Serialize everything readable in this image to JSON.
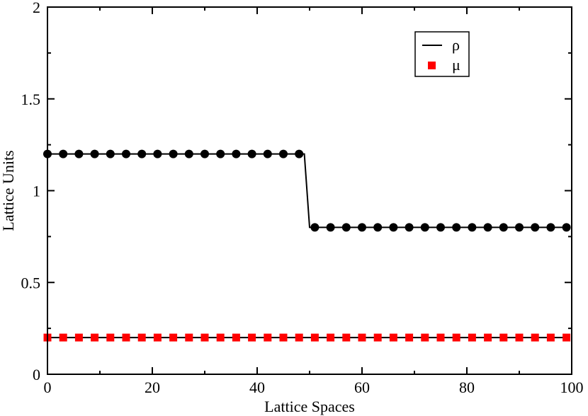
{
  "chart_data": {
    "type": "line",
    "title": "",
    "xlabel": "Lattice Spaces",
    "ylabel": "Lattice Units",
    "xlim": [
      0,
      100
    ],
    "ylim": [
      0,
      2
    ],
    "xticks": [
      0,
      20,
      40,
      60,
      80,
      100
    ],
    "yticks": [
      0,
      0.5,
      1,
      1.5,
      2
    ],
    "xtick_labels": [
      "0",
      "20",
      "40",
      "60",
      "80",
      "100"
    ],
    "ytick_labels": [
      "0",
      "0.5",
      "1",
      "1.5",
      "2"
    ],
    "grid": false,
    "legend_position": "top-right",
    "series": [
      {
        "name": "ρ",
        "line_color": "#000000",
        "marker": "circle",
        "marker_color": "#000000",
        "line_x": [
          0,
          1,
          2,
          3,
          4,
          5,
          6,
          7,
          8,
          9,
          10,
          11,
          12,
          13,
          14,
          15,
          16,
          17,
          18,
          19,
          20,
          21,
          22,
          23,
          24,
          25,
          26,
          27,
          28,
          29,
          30,
          31,
          32,
          33,
          34,
          35,
          36,
          37,
          38,
          39,
          40,
          41,
          42,
          43,
          44,
          45,
          46,
          47,
          48,
          49,
          50,
          51,
          52,
          53,
          54,
          55,
          56,
          57,
          58,
          59,
          60,
          61,
          62,
          63,
          64,
          65,
          66,
          67,
          68,
          69,
          70,
          71,
          72,
          73,
          74,
          75,
          76,
          77,
          78,
          79,
          80,
          81,
          82,
          83,
          84,
          85,
          86,
          87,
          88,
          89,
          90,
          91,
          92,
          93,
          94,
          95,
          96,
          97,
          98,
          99
        ],
        "line_y": [
          1.2,
          1.2,
          1.2,
          1.2,
          1.2,
          1.2,
          1.2,
          1.2,
          1.2,
          1.2,
          1.2,
          1.2,
          1.2,
          1.2,
          1.2,
          1.2,
          1.2,
          1.2,
          1.2,
          1.2,
          1.2,
          1.2,
          1.2,
          1.2,
          1.2,
          1.2,
          1.2,
          1.2,
          1.2,
          1.2,
          1.2,
          1.2,
          1.2,
          1.2,
          1.2,
          1.2,
          1.2,
          1.2,
          1.2,
          1.2,
          1.2,
          1.2,
          1.2,
          1.2,
          1.2,
          1.2,
          1.2,
          1.2,
          1.2,
          1.2,
          0.8,
          0.8,
          0.8,
          0.8,
          0.8,
          0.8,
          0.8,
          0.8,
          0.8,
          0.8,
          0.8,
          0.8,
          0.8,
          0.8,
          0.8,
          0.8,
          0.8,
          0.8,
          0.8,
          0.8,
          0.8,
          0.8,
          0.8,
          0.8,
          0.8,
          0.8,
          0.8,
          0.8,
          0.8,
          0.8,
          0.8,
          0.8,
          0.8,
          0.8,
          0.8,
          0.8,
          0.8,
          0.8,
          0.8,
          0.8,
          0.8,
          0.8,
          0.8,
          0.8,
          0.8,
          0.8,
          0.8,
          0.8,
          0.8,
          0.8
        ],
        "marker_x": [
          0,
          3,
          6,
          9,
          12,
          15,
          18,
          21,
          24,
          27,
          30,
          33,
          36,
          39,
          42,
          45,
          48,
          51,
          54,
          57,
          60,
          63,
          66,
          69,
          72,
          75,
          78,
          81,
          84,
          87,
          90,
          93,
          96,
          99
        ],
        "marker_y": [
          1.2,
          1.2,
          1.2,
          1.2,
          1.2,
          1.2,
          1.2,
          1.2,
          1.2,
          1.2,
          1.2,
          1.2,
          1.2,
          1.2,
          1.2,
          1.2,
          1.2,
          0.8,
          0.8,
          0.8,
          0.8,
          0.8,
          0.8,
          0.8,
          0.8,
          0.8,
          0.8,
          0.8,
          0.8,
          0.8,
          0.8,
          0.8,
          0.8,
          0.8
        ]
      },
      {
        "name": "μ",
        "line_color": "#000000",
        "marker": "square",
        "marker_color": "#ff0000",
        "line_x": [
          0,
          99
        ],
        "line_y": [
          0.2,
          0.2
        ],
        "marker_x": [
          0,
          3,
          6,
          9,
          12,
          15,
          18,
          21,
          24,
          27,
          30,
          33,
          36,
          39,
          42,
          45,
          48,
          51,
          54,
          57,
          60,
          63,
          66,
          69,
          72,
          75,
          78,
          81,
          84,
          87,
          90,
          93,
          96,
          99
        ],
        "marker_y": [
          0.2,
          0.2,
          0.2,
          0.2,
          0.2,
          0.2,
          0.2,
          0.2,
          0.2,
          0.2,
          0.2,
          0.2,
          0.2,
          0.2,
          0.2,
          0.2,
          0.2,
          0.2,
          0.2,
          0.2,
          0.2,
          0.2,
          0.2,
          0.2,
          0.2,
          0.2,
          0.2,
          0.2,
          0.2,
          0.2,
          0.2,
          0.2,
          0.2,
          0.2
        ]
      }
    ]
  }
}
